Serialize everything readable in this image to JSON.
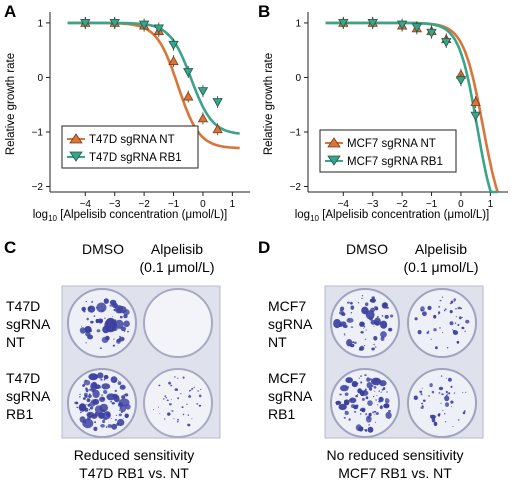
{
  "panels": {
    "A": {
      "letter": "A",
      "ylabel": "Relative growth rate",
      "xlabel_prefix": "log",
      "xlabel_sub": "10",
      "xlabel_rest": " [Alpelisib concentration (μmol/L)]",
      "legend": [
        "T47D sgRNA NT",
        "T47D sgRNA RB1"
      ]
    },
    "B": {
      "letter": "B",
      "ylabel": "Relative growth rate",
      "xlabel_prefix": "log",
      "xlabel_sub": "10",
      "xlabel_rest": " [Alpelisib concentration (μmol/L)]",
      "legend": [
        "MCF7 sgRNA NT",
        "MCF7 sgRNA RB1"
      ]
    },
    "C": {
      "letter": "C",
      "col_heads": [
        "DMSO",
        "Alpelisib",
        "(0.1 μmol/L)"
      ],
      "row_labels": [
        [
          "T47D",
          "sgRNA",
          "NT"
        ],
        [
          "T47D",
          "sgRNA",
          "RB1"
        ]
      ],
      "caption": [
        "Reduced sensitivity",
        "T47D RB1 vs. NT"
      ]
    },
    "D": {
      "letter": "D",
      "col_heads": [
        "DMSO",
        "Alpelisib",
        "(0.1 μmol/L)"
      ],
      "row_labels": [
        [
          "MCF7",
          "sgRNA",
          "NT"
        ],
        [
          "MCF7",
          "sgRNA",
          "RB1"
        ]
      ],
      "caption": [
        "No reduced sensitivity",
        "MCF7 RB1 vs. NT"
      ]
    }
  },
  "colors": {
    "nt": "#d9743a",
    "rb1": "#3aa48a",
    "stain": "#3b3f9e",
    "plate": "#e6e8f2"
  },
  "chart_data": [
    {
      "type": "line",
      "panel": "A",
      "xlim": [
        -5.2,
        1.6
      ],
      "ylim": [
        -2.1,
        1.2
      ],
      "xticks": [
        -4,
        -3,
        -2,
        -1,
        0,
        1
      ],
      "yticks": [
        -2,
        -1,
        0,
        1
      ],
      "series": [
        {
          "name": "T47D sgRNA NT",
          "color": "#d9743a",
          "marker": "triangle-up",
          "x": [
            -4,
            -3,
            -2,
            -1.5,
            -1,
            -0.5,
            0,
            0.5
          ],
          "y": [
            1.0,
            1.0,
            0.95,
            0.85,
            0.3,
            -0.35,
            -0.75,
            -0.95
          ],
          "curve": {
            "top": 1.0,
            "bottom": -1.3,
            "ec50": -0.85,
            "hill": 1.2
          }
        },
        {
          "name": "T47D sgRNA RB1",
          "color": "#3aa48a",
          "marker": "triangle-down",
          "x": [
            -4,
            -3,
            -2,
            -1.5,
            -1,
            -0.5,
            0,
            0.5
          ],
          "y": [
            1.0,
            1.0,
            0.97,
            0.9,
            0.6,
            0.1,
            -0.25,
            -0.45
          ],
          "curve": {
            "top": 1.0,
            "bottom": -1.05,
            "ec50": -0.4,
            "hill": 1.2
          }
        }
      ]
    },
    {
      "type": "line",
      "panel": "B",
      "xlim": [
        -5.2,
        1.6
      ],
      "ylim": [
        -2.1,
        1.2
      ],
      "xticks": [
        -4,
        -3,
        -2,
        -1,
        0,
        1
      ],
      "yticks": [
        -2,
        -1,
        0,
        1
      ],
      "series": [
        {
          "name": "MCF7 sgRNA NT",
          "color": "#d9743a",
          "marker": "triangle-up",
          "x": [
            -4,
            -3,
            -2,
            -1.5,
            -1,
            -0.5,
            0,
            0.5
          ],
          "y": [
            1.0,
            1.0,
            0.95,
            0.9,
            0.85,
            0.7,
            0.05,
            -0.45
          ],
          "curve": {
            "top": 1.0,
            "bottom": -2.8,
            "ec50": 0.75,
            "hill": 1.3
          }
        },
        {
          "name": "MCF7 sgRNA RB1",
          "color": "#3aa48a",
          "marker": "triangle-down",
          "x": [
            -4,
            -3,
            -2,
            -1.5,
            -1,
            -0.5,
            0,
            0.5
          ],
          "y": [
            1.0,
            1.0,
            0.97,
            0.92,
            0.82,
            0.65,
            -0.05,
            -0.7
          ],
          "curve": {
            "top": 1.0,
            "bottom": -2.8,
            "ec50": 0.55,
            "hill": 1.4
          }
        }
      ]
    }
  ]
}
